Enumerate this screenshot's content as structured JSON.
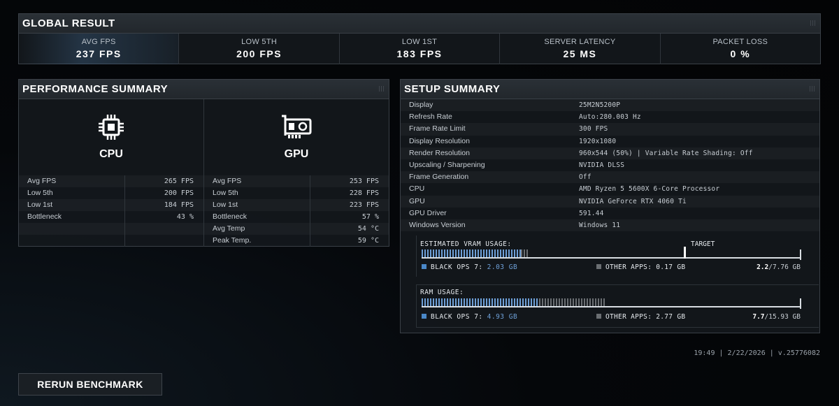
{
  "global": {
    "title": "GLOBAL RESULT",
    "stats": [
      {
        "label": "AVG FPS",
        "value": "237 FPS"
      },
      {
        "label": "LOW 5TH",
        "value": "200 FPS"
      },
      {
        "label": "LOW 1ST",
        "value": "183 FPS"
      },
      {
        "label": "SERVER LATENCY",
        "value": "25 MS"
      },
      {
        "label": "PACKET LOSS",
        "value": "0 %"
      }
    ]
  },
  "performance": {
    "title": "PERFORMANCE SUMMARY",
    "cpu": {
      "name": "CPU",
      "icon": "cpu-chip-icon",
      "rows": [
        {
          "k": "Avg FPS",
          "v": "265 FPS"
        },
        {
          "k": "Low 5th",
          "v": "200 FPS"
        },
        {
          "k": "Low 1st",
          "v": "184 FPS"
        },
        {
          "k": "Bottleneck",
          "v": "43 %"
        }
      ]
    },
    "gpu": {
      "name": "GPU",
      "icon": "graphics-card-icon",
      "rows": [
        {
          "k": "Avg FPS",
          "v": "253 FPS"
        },
        {
          "k": "Low 5th",
          "v": "228 FPS"
        },
        {
          "k": "Low 1st",
          "v": "223 FPS"
        },
        {
          "k": "Bottleneck",
          "v": "57 %"
        },
        {
          "k": "Avg Temp",
          "v": "54 °C"
        },
        {
          "k": "Peak Temp.",
          "v": "59 °C"
        }
      ]
    }
  },
  "setup": {
    "title": "SETUP SUMMARY",
    "rows": [
      {
        "k": "Display",
        "v": "25M2N5200P"
      },
      {
        "k": "Refresh Rate",
        "v": "Auto:280.003 Hz"
      },
      {
        "k": "Frame Rate Limit",
        "v": "300 FPS"
      },
      {
        "k": "Display Resolution",
        "v": "1920x1080"
      },
      {
        "k": "Render Resolution",
        "v": "960x544 (50%) | Variable Rate Shading: Off"
      },
      {
        "k": "Upscaling / Sharpening",
        "v": "NVIDIA DLSS"
      },
      {
        "k": "Frame Generation",
        "v": "Off"
      },
      {
        "k": "CPU",
        "v": "AMD Ryzen 5 5600X 6-Core Processor"
      },
      {
        "k": "GPU",
        "v": "NVIDIA GeForce RTX 4060 Ti"
      },
      {
        "k": "GPU Driver",
        "v": "591.44"
      },
      {
        "k": "Windows Version",
        "v": "Windows 11"
      }
    ],
    "vram": {
      "label": "ESTIMATED VRAM USAGE:",
      "target_label": "TARGET",
      "game_label": "BLACK OPS 7:",
      "game_value": "2.03 GB",
      "other_label": "OTHER APPS:",
      "other_value": "0.17 GB",
      "used": "2.2",
      "total": "/7.76 GB",
      "game_gb": 2.03,
      "other_gb": 0.17,
      "total_gb": 7.76,
      "target_fraction": 0.69
    },
    "ram": {
      "label": "RAM USAGE:",
      "game_label": "BLACK OPS 7:",
      "game_value": "4.93 GB",
      "other_label": "OTHER APPS:",
      "other_value": "2.77 GB",
      "used": "7.7",
      "total": "/15.93 GB",
      "game_gb": 4.93,
      "other_gb": 2.77,
      "total_gb": 15.93
    }
  },
  "footer": {
    "timestamp": "19:49 | 2/22/2026 | v.25776082",
    "rerun_label": "RERUN BENCHMARK"
  },
  "colors": {
    "accent_blue": "#6ea0d8",
    "other_gray": "#6a6e72"
  }
}
